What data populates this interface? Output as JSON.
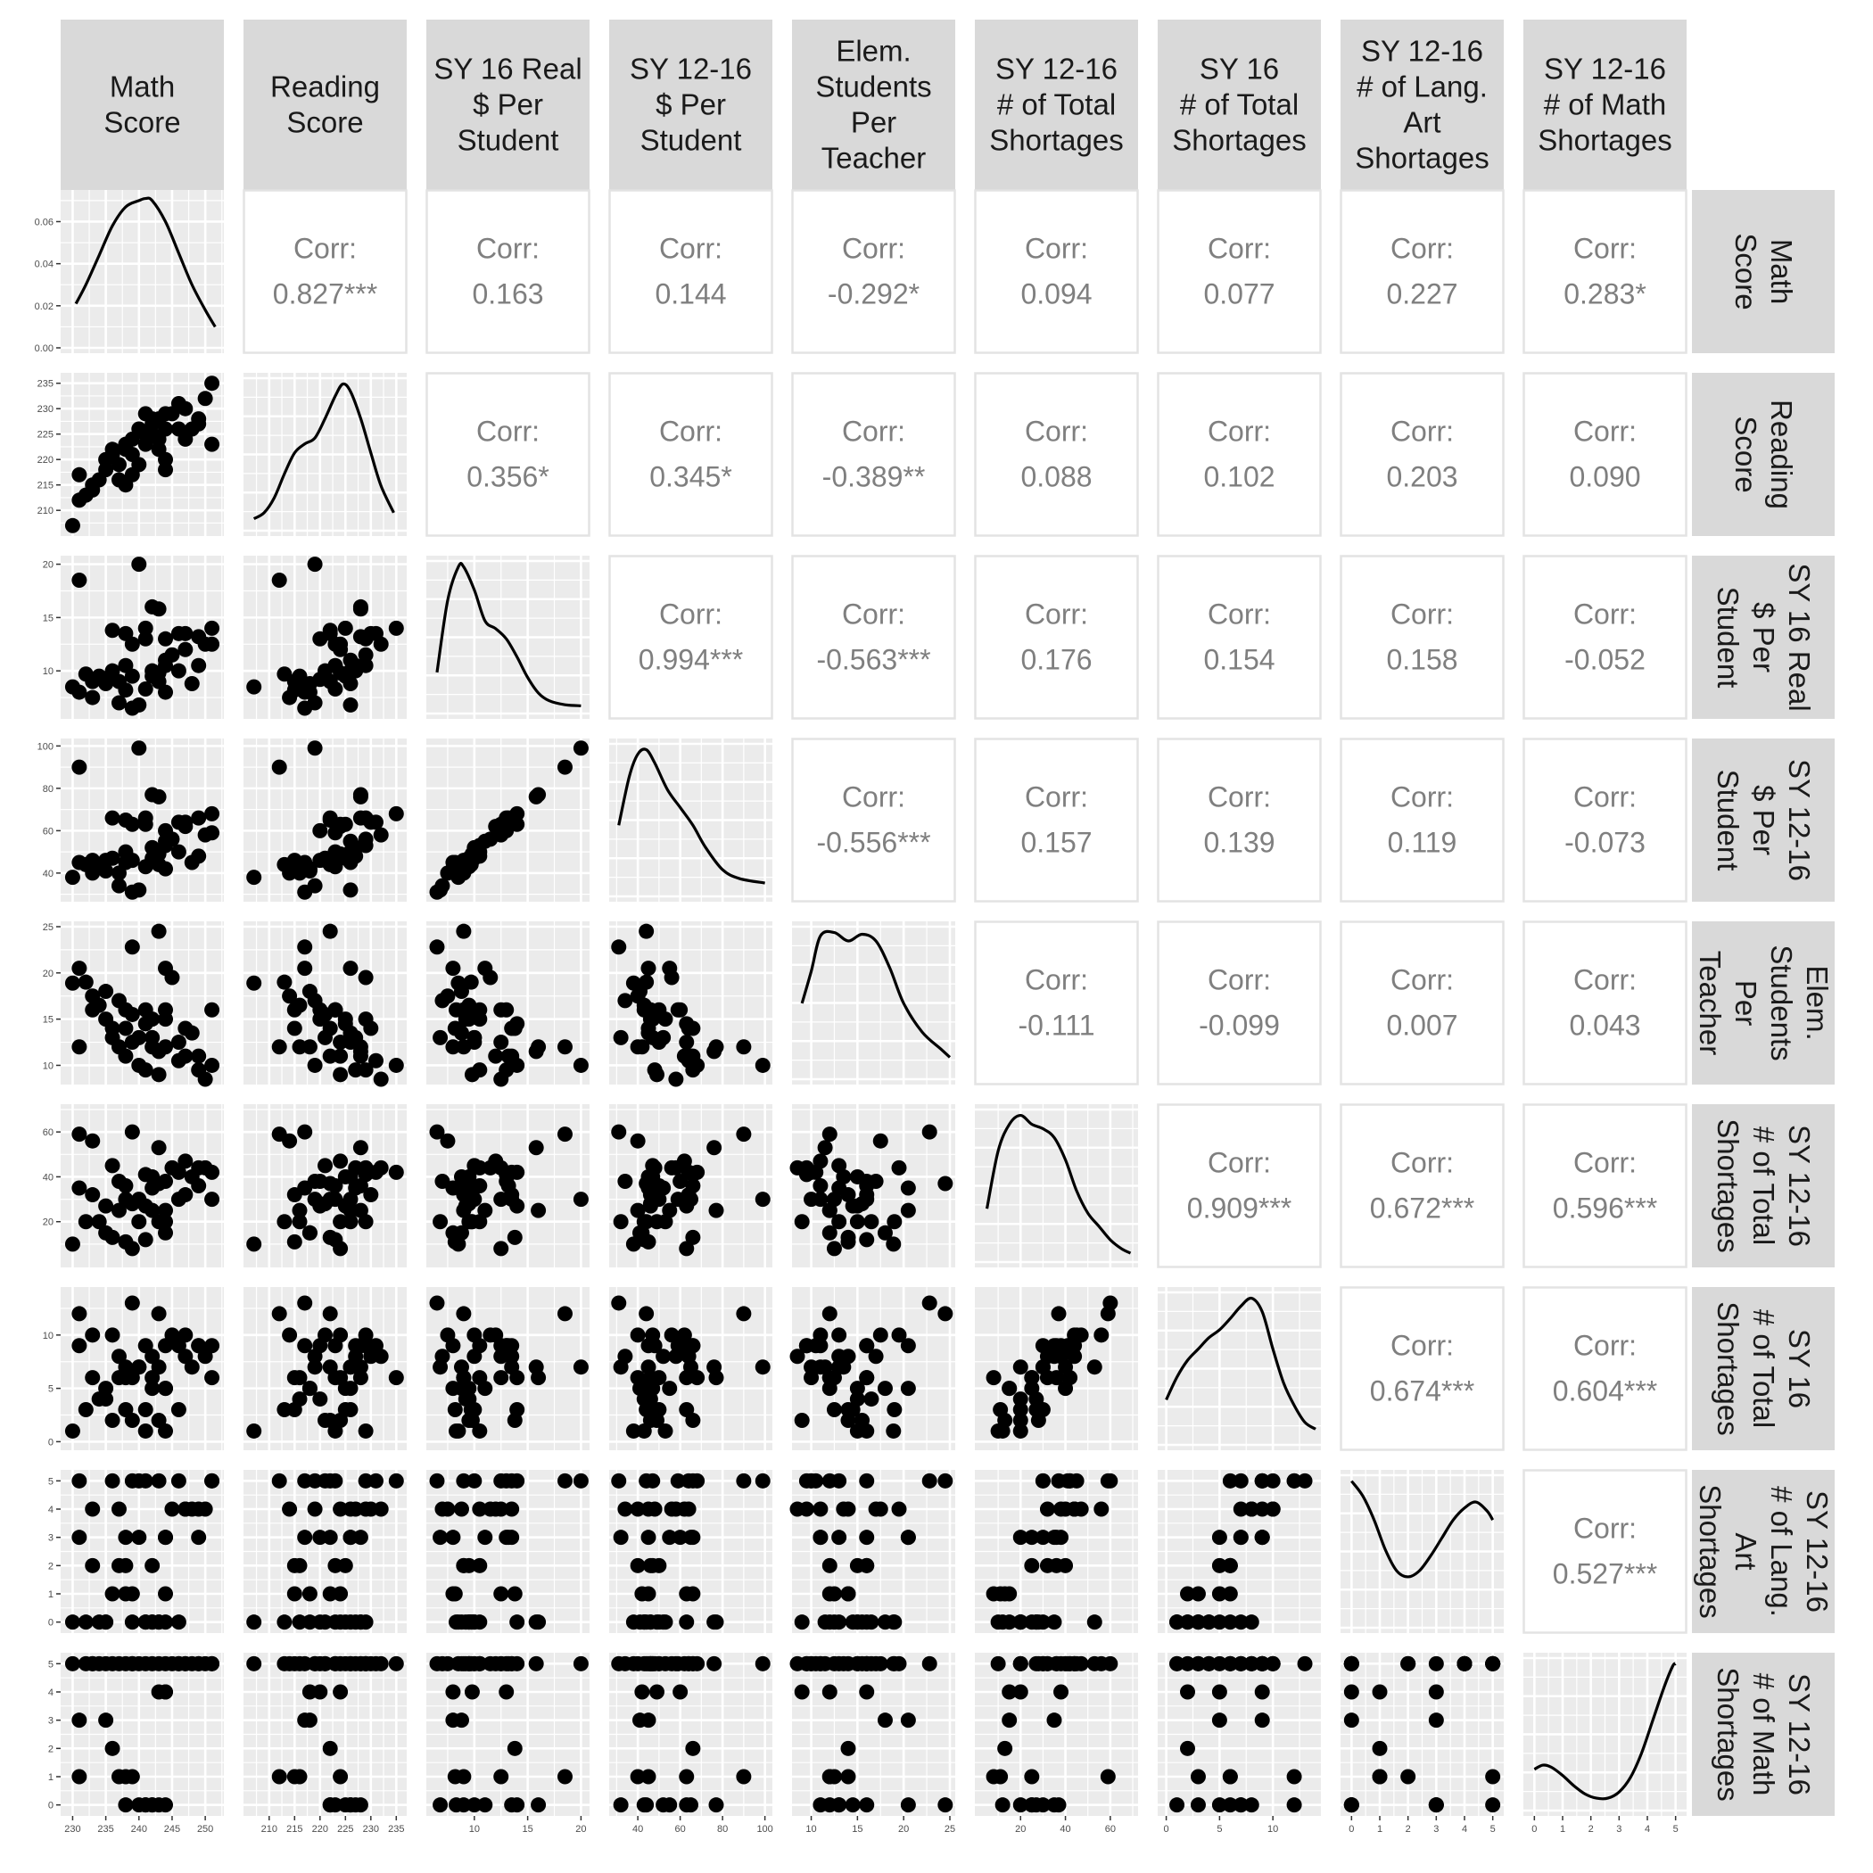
{
  "chart_data": {
    "type": "scatter-matrix",
    "variables": [
      {
        "id": "math",
        "label": [
          "Math",
          "Score"
        ],
        "lim": [
          229,
          252
        ],
        "ticks": [
          230,
          235,
          240,
          245,
          250
        ],
        "yticks": [
          0,
          0.02,
          0.04,
          0.06
        ],
        "ylabels": [
          "0.00",
          "0.02",
          "0.04",
          "0.06"
        ],
        "dlim": [
          0,
          0.0725
        ]
      },
      {
        "id": "read",
        "label": [
          "Reading",
          "Score"
        ],
        "lim": [
          206,
          236
        ],
        "ticks": [
          210,
          215,
          220,
          225,
          230,
          235
        ],
        "yticks": [
          210,
          215,
          220,
          225,
          230,
          235
        ]
      },
      {
        "id": "real",
        "label": [
          "SY 16 Real",
          "$ Per",
          "Student"
        ],
        "lim": [
          6,
          20.3
        ],
        "ticks": [
          10,
          15,
          20
        ],
        "yticks": [
          10,
          15,
          20
        ]
      },
      {
        "id": "per",
        "label": [
          "SY 12-16",
          "$ Per",
          "Student"
        ],
        "lim": [
          29,
          101
        ],
        "ticks": [
          40,
          60,
          80,
          100
        ],
        "yticks": [
          40,
          60,
          80,
          100
        ]
      },
      {
        "id": "ratio",
        "label": [
          "Elem.",
          "Students",
          "Per",
          "Teacher"
        ],
        "lim": [
          8.5,
          25
        ],
        "ticks": [
          10,
          15,
          20,
          25
        ],
        "yticks": [
          10,
          15,
          20,
          25
        ]
      },
      {
        "id": "tot",
        "label": [
          "SY 12-16",
          "# of Total",
          "Shortages"
        ],
        "lim": [
          2,
          70
        ],
        "ticks": [
          20,
          40,
          60
        ],
        "yticks": [
          20,
          40,
          60
        ]
      },
      {
        "id": "tot16",
        "label": [
          "SY 16",
          "# of Total",
          "Shortages"
        ],
        "lim": [
          -0.3,
          14
        ],
        "ticks": [
          0,
          5,
          10
        ],
        "yticks": [
          0,
          5,
          10
        ]
      },
      {
        "id": "lang",
        "label": [
          "SY 12-16",
          "# of Lang.",
          "Art",
          "Shortages"
        ],
        "lim": [
          -0.2,
          5.2
        ],
        "ticks": [
          0,
          1,
          2,
          3,
          4,
          5
        ],
        "yticks": [
          0,
          1,
          2,
          3,
          4,
          5
        ]
      },
      {
        "id": "mathsh",
        "label": [
          "SY 12-16",
          "# of Math",
          "Shortages"
        ],
        "lim": [
          -0.2,
          5.2
        ],
        "ticks": [
          0,
          1,
          2,
          3,
          4,
          5
        ],
        "yticks": [
          0,
          1,
          2,
          3,
          4,
          5
        ]
      }
    ],
    "correlations": [
      [
        "0.827***",
        "0.163",
        "0.144",
        "-0.292*",
        "0.094",
        "0.077",
        "0.227",
        "0.283*"
      ],
      [
        "0.356*",
        "0.345*",
        "-0.389**",
        "0.088",
        "0.102",
        "0.203",
        "0.090"
      ],
      [
        "0.994***",
        "-0.563***",
        "0.176",
        "0.154",
        "0.158",
        "-0.052"
      ],
      [
        "-0.556***",
        "0.157",
        "0.139",
        "0.119",
        "-0.073"
      ],
      [
        "-0.111",
        "-0.099",
        "0.007",
        "0.043"
      ],
      [
        "0.909***",
        "0.672***",
        "0.596***"
      ],
      [
        "0.674***",
        "0.604***"
      ],
      [
        "0.527***"
      ]
    ],
    "corr_label": "Corr:",
    "observations": [
      [
        230,
        207,
        8.5,
        38,
        18.9,
        10,
        1,
        0,
        5
      ],
      [
        231,
        212,
        18.5,
        90,
        12,
        59,
        12,
        5,
        1
      ],
      [
        231,
        217,
        8,
        45,
        20.5,
        35,
        9,
        3,
        3
      ],
      [
        232,
        213,
        9.7,
        44,
        19,
        20,
        3,
        0,
        5
      ],
      [
        233,
        215,
        9,
        46,
        16,
        32,
        6,
        2,
        5
      ],
      [
        233,
        214,
        7.5,
        40,
        17.5,
        56,
        10,
        4,
        5
      ],
      [
        234,
        216,
        9.5,
        43,
        16.5,
        20,
        4,
        0,
        5
      ],
      [
        235,
        218,
        8.8,
        41,
        18,
        15,
        5,
        0,
        3
      ],
      [
        235,
        220,
        9.2,
        46,
        15,
        27,
        4,
        0,
        5
      ],
      [
        236,
        221,
        10,
        47,
        13,
        45,
        10,
        5,
        5
      ],
      [
        236,
        222,
        13.8,
        66,
        14,
        13,
        2,
        1,
        2
      ],
      [
        237,
        216,
        9,
        40,
        12,
        25,
        6,
        2,
        1
      ],
      [
        237,
        219,
        7,
        34,
        17,
        38,
        8,
        4,
        5
      ],
      [
        238,
        222,
        13.5,
        65,
        11,
        30,
        7,
        3,
        0
      ],
      [
        238,
        215,
        8.2,
        45,
        14,
        11,
        3,
        1,
        1
      ],
      [
        238,
        223,
        10.5,
        50,
        16,
        36,
        6,
        2,
        5
      ],
      [
        239,
        217,
        6.5,
        31,
        22.8,
        60,
        13,
        5,
        5
      ],
      [
        239,
        221,
        9.5,
        46,
        15.5,
        28,
        2,
        0,
        5
      ],
      [
        239,
        224,
        12.5,
        63,
        12.5,
        8,
        6,
        1,
        1
      ],
      [
        240,
        226,
        6.8,
        32,
        13,
        20,
        7,
        3,
        0
      ],
      [
        240,
        219,
        20,
        99,
        10,
        30,
        7,
        5,
        5
      ],
      [
        241,
        223,
        8.3,
        43,
        16,
        12,
        1,
        0,
        0
      ],
      [
        241,
        225,
        14,
        63,
        14.5,
        27,
        3,
        0,
        0
      ],
      [
        241,
        229,
        13,
        66,
        9.5,
        41,
        9,
        5,
        5
      ],
      [
        242,
        228,
        16,
        77,
        12,
        25,
        6,
        0,
        0
      ],
      [
        242,
        225,
        9.5,
        47,
        15,
        40,
        5,
        2,
        5
      ],
      [
        242,
        227,
        10,
        52,
        13,
        35,
        8,
        0,
        0
      ],
      [
        243,
        222,
        9,
        44,
        24.5,
        37,
        12,
        5,
        0
      ],
      [
        243,
        228,
        15.8,
        76,
        11.5,
        53,
        7,
        0,
        5
      ],
      [
        243,
        224,
        9.8,
        49,
        9,
        20,
        2,
        0,
        4
      ],
      [
        244,
        218,
        8,
        42,
        12,
        15,
        5,
        1,
        4
      ],
      [
        244,
        229,
        10.5,
        53,
        15,
        20,
        1,
        0,
        5
      ],
      [
        244,
        220,
        13,
        60,
        16,
        38,
        9,
        3,
        4
      ],
      [
        244,
        226,
        11,
        55,
        20.5,
        25,
        5,
        3,
        0
      ],
      [
        245,
        229,
        11.5,
        56,
        19.5,
        44,
        10,
        4,
        5
      ],
      [
        246,
        226,
        10,
        50,
        12.5,
        30,
        3,
        0,
        5
      ],
      [
        246,
        231,
        13.5,
        64,
        10.5,
        42,
        9,
        5,
        5
      ],
      [
        247,
        224,
        12,
        62,
        11,
        47,
        10,
        4,
        5
      ],
      [
        247,
        230,
        13.5,
        64,
        14,
        32,
        8,
        4,
        5
      ],
      [
        248,
        226,
        8.8,
        45,
        13.5,
        40,
        7,
        4,
        5
      ],
      [
        249,
        228,
        13.2,
        66,
        11,
        36,
        9,
        3,
        5
      ],
      [
        249,
        227,
        10.5,
        48,
        9.5,
        44,
        9,
        4,
        5
      ],
      [
        250,
        232,
        12.5,
        58,
        8.5,
        44,
        8,
        4,
        5
      ],
      [
        251,
        223,
        12.5,
        59,
        16,
        30,
        9,
        5,
        5
      ],
      [
        251,
        235,
        14,
        68,
        10,
        42,
        6,
        5,
        5
      ]
    ],
    "densities": [
      [
        [
          230.5,
          0.021
        ],
        [
          232,
          0.03
        ],
        [
          234,
          0.044
        ],
        [
          236,
          0.058
        ],
        [
          238,
          0.067
        ],
        [
          240,
          0.07
        ],
        [
          241,
          0.071
        ],
        [
          242,
          0.07
        ],
        [
          244,
          0.06
        ],
        [
          246,
          0.045
        ],
        [
          248,
          0.03
        ],
        [
          250,
          0.018
        ],
        [
          251.5,
          0.01
        ]
      ],
      [
        [
          207,
          0.008
        ],
        [
          209,
          0.012
        ],
        [
          211,
          0.022
        ],
        [
          213,
          0.038
        ],
        [
          215,
          0.052
        ],
        [
          217,
          0.058
        ],
        [
          219,
          0.062
        ],
        [
          221,
          0.075
        ],
        [
          223,
          0.09
        ],
        [
          224.5,
          0.098
        ],
        [
          226,
          0.093
        ],
        [
          228,
          0.075
        ],
        [
          230,
          0.052
        ],
        [
          232,
          0.03
        ],
        [
          234.5,
          0.012
        ]
      ],
      [
        [
          6.5,
          0.08
        ],
        [
          7.5,
          0.22
        ],
        [
          8.5,
          0.285
        ],
        [
          9,
          0.285
        ],
        [
          10,
          0.24
        ],
        [
          11,
          0.18
        ],
        [
          12,
          0.165
        ],
        [
          13,
          0.145
        ],
        [
          14,
          0.11
        ],
        [
          15,
          0.07
        ],
        [
          16,
          0.04
        ],
        [
          17,
          0.025
        ],
        [
          18.5,
          0.017
        ],
        [
          20,
          0.015
        ]
      ],
      [
        [
          31,
          0.016
        ],
        [
          36,
          0.027
        ],
        [
          40,
          0.032
        ],
        [
          44,
          0.033
        ],
        [
          48,
          0.03
        ],
        [
          54,
          0.024
        ],
        [
          60,
          0.02
        ],
        [
          66,
          0.016
        ],
        [
          72,
          0.011
        ],
        [
          80,
          0.006
        ],
        [
          88,
          0.004
        ],
        [
          100,
          0.003
        ]
      ],
      [
        [
          9,
          0.045
        ],
        [
          10,
          0.064
        ],
        [
          11,
          0.085
        ],
        [
          12.5,
          0.087
        ],
        [
          14,
          0.082
        ],
        [
          15.5,
          0.086
        ],
        [
          17,
          0.082
        ],
        [
          18.5,
          0.066
        ],
        [
          20,
          0.045
        ],
        [
          22,
          0.028
        ],
        [
          24,
          0.018
        ],
        [
          25,
          0.013
        ]
      ],
      [
        [
          5,
          0.012
        ],
        [
          10,
          0.025
        ],
        [
          15,
          0.031
        ],
        [
          20,
          0.033
        ],
        [
          25,
          0.031
        ],
        [
          30,
          0.03
        ],
        [
          35,
          0.028
        ],
        [
          40,
          0.023
        ],
        [
          45,
          0.016
        ],
        [
          50,
          0.011
        ],
        [
          55,
          0.008
        ],
        [
          60,
          0.005
        ],
        [
          65,
          0.003
        ],
        [
          69,
          0.002
        ]
      ],
      [
        [
          0,
          0.04
        ],
        [
          1,
          0.06
        ],
        [
          2,
          0.075
        ],
        [
          3,
          0.085
        ],
        [
          4,
          0.095
        ],
        [
          5,
          0.102
        ],
        [
          6,
          0.112
        ],
        [
          7,
          0.123
        ],
        [
          8,
          0.13
        ],
        [
          9,
          0.118
        ],
        [
          10,
          0.085
        ],
        [
          11,
          0.055
        ],
        [
          12,
          0.035
        ],
        [
          13,
          0.02
        ],
        [
          14,
          0.014
        ]
      ],
      [
        [
          0,
          0.245
        ],
        [
          0.4,
          0.22
        ],
        [
          0.8,
          0.18
        ],
        [
          1.2,
          0.13
        ],
        [
          1.6,
          0.095
        ],
        [
          2,
          0.085
        ],
        [
          2.4,
          0.095
        ],
        [
          2.8,
          0.12
        ],
        [
          3.2,
          0.15
        ],
        [
          3.6,
          0.18
        ],
        [
          4,
          0.2
        ],
        [
          4.4,
          0.21
        ],
        [
          4.8,
          0.195
        ],
        [
          5,
          0.18
        ]
      ],
      [
        [
          0,
          0.1
        ],
        [
          0.3,
          0.11
        ],
        [
          0.6,
          0.105
        ],
        [
          1,
          0.085
        ],
        [
          1.4,
          0.06
        ],
        [
          1.8,
          0.04
        ],
        [
          2.2,
          0.03
        ],
        [
          2.6,
          0.03
        ],
        [
          3,
          0.045
        ],
        [
          3.4,
          0.08
        ],
        [
          3.8,
          0.14
        ],
        [
          4.2,
          0.22
        ],
        [
          4.6,
          0.3
        ],
        [
          4.9,
          0.35
        ],
        [
          5,
          0.355
        ]
      ]
    ]
  }
}
